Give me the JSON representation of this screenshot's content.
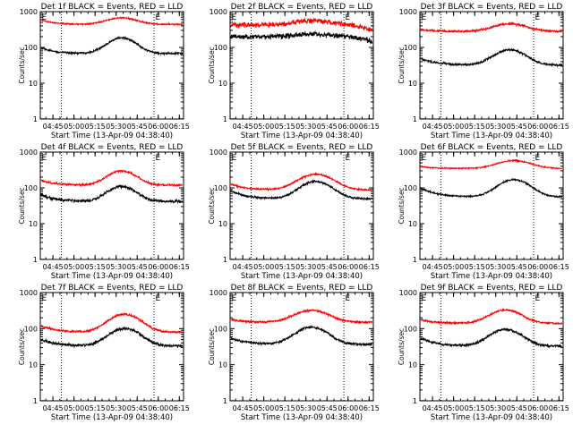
{
  "figure": {
    "background": "#ffffff",
    "colors": {
      "events": "#000000",
      "lld": "#ff0000",
      "axis": "#000000"
    }
  },
  "chart_data": [
    {
      "type": "line",
      "title": "Det 1f BLACK = Events, RED = LLD",
      "xlabel": "Start Time (13-Apr-09 04:38:40)",
      "ylabel": "Counts/sec",
      "x_ticks": [
        "04:45",
        "05:00",
        "05:15",
        "05:30",
        "05:45",
        "06:00",
        "06:15"
      ],
      "xlim_minutes": [
        -3,
        99
      ],
      "x_tick_minutes": [
        6,
        21,
        36,
        51,
        66,
        81,
        96
      ],
      "y_scale": "log",
      "ylim": [
        1,
        1000
      ],
      "y_ticks": [
        "1",
        "10",
        "100",
        "1000"
      ],
      "marker_lines_minutes": [
        12,
        78
      ],
      "marker_label": "E",
      "series": [
        {
          "color": "#000000",
          "base": 68,
          "peak": 185,
          "peak_minute": 55,
          "width_minutes": 9,
          "start": 100,
          "decay_minutes": 8,
          "noise": 0.05
        },
        {
          "color": "#ff0000",
          "base": 440,
          "peak": 670,
          "peak_minute": 55,
          "width_minutes": 10,
          "start": 600,
          "decay_minutes": 8,
          "noise": 0.035
        }
      ]
    },
    {
      "type": "line",
      "title": "Det 2f BLACK = Events, RED = LLD",
      "xlabel": "Start Time (13-Apr-09 04:38:40)",
      "ylabel": "Counts/sec",
      "x_ticks": [
        "04:45",
        "05:00",
        "05:15",
        "05:30",
        "05:45",
        "06:00",
        "06:15"
      ],
      "xlim_minutes": [
        -3,
        99
      ],
      "x_tick_minutes": [
        6,
        21,
        36,
        51,
        66,
        81,
        96
      ],
      "y_scale": "log",
      "ylim": [
        1,
        1000
      ],
      "y_ticks": [
        "1",
        "10",
        "100",
        "1000"
      ],
      "marker_lines_minutes": [
        12,
        78
      ],
      "marker_label": "E",
      "series": [
        {
          "color": "#000000",
          "base": 200,
          "peak": 240,
          "peak_minute": 55,
          "width_minutes": 12,
          "start": 200,
          "decay_minutes": 8,
          "noise": 0.13,
          "end": 150
        },
        {
          "color": "#ff0000",
          "base": 430,
          "peak": 560,
          "peak_minute": 55,
          "width_minutes": 12,
          "start": 430,
          "decay_minutes": 8,
          "noise": 0.13,
          "end": 300
        }
      ]
    },
    {
      "type": "line",
      "title": "Det 3f BLACK = Events, RED = LLD",
      "xlabel": "Start Time (13-Apr-09 04:38:40)",
      "ylabel": "Counts/sec",
      "x_ticks": [
        "04:45",
        "05:00",
        "05:15",
        "05:30",
        "05:45",
        "06:00",
        "06:15"
      ],
      "xlim_minutes": [
        -3,
        99
      ],
      "x_tick_minutes": [
        6,
        21,
        36,
        51,
        66,
        81,
        96
      ],
      "y_scale": "log",
      "ylim": [
        1,
        1000
      ],
      "y_ticks": [
        "1",
        "10",
        "100",
        "1000"
      ],
      "marker_lines_minutes": [
        12,
        78
      ],
      "marker_label": "E",
      "series": [
        {
          "color": "#000000",
          "base": 32,
          "peak": 85,
          "peak_minute": 61,
          "width_minutes": 10,
          "start": 50,
          "decay_minutes": 10,
          "noise": 0.06
        },
        {
          "color": "#ff0000",
          "base": 280,
          "peak": 460,
          "peak_minute": 61,
          "width_minutes": 11,
          "start": 320,
          "decay_minutes": 8,
          "noise": 0.05
        }
      ]
    },
    {
      "type": "line",
      "title": "Det 4f BLACK = Events, RED = LLD",
      "xlabel": "Start Time (13-Apr-09 04:38:40)",
      "ylabel": "Counts/sec",
      "x_ticks": [
        "04:45",
        "05:00",
        "05:15",
        "05:30",
        "05:45",
        "06:00",
        "06:15"
      ],
      "xlim_minutes": [
        -3,
        99
      ],
      "x_tick_minutes": [
        6,
        21,
        36,
        51,
        66,
        81,
        96
      ],
      "y_scale": "log",
      "ylim": [
        1,
        1000
      ],
      "y_ticks": [
        "1",
        "10",
        "100",
        "1000"
      ],
      "marker_lines_minutes": [
        12,
        78
      ],
      "marker_label": "E",
      "series": [
        {
          "color": "#000000",
          "base": 42,
          "peak": 110,
          "peak_minute": 55,
          "width_minutes": 9,
          "start": 65,
          "decay_minutes": 9,
          "noise": 0.07
        },
        {
          "color": "#ff0000",
          "base": 120,
          "peak": 300,
          "peak_minute": 55,
          "width_minutes": 9,
          "start": 165,
          "decay_minutes": 9,
          "noise": 0.05
        }
      ]
    },
    {
      "type": "line",
      "title": "Det 5f BLACK = Events, RED = LLD",
      "xlabel": "Start Time (13-Apr-09 04:38:40)",
      "ylabel": "Counts/sec",
      "x_ticks": [
        "04:45",
        "05:00",
        "05:15",
        "05:30",
        "05:45",
        "06:00",
        "06:15"
      ],
      "xlim_minutes": [
        -3,
        99
      ],
      "x_tick_minutes": [
        6,
        21,
        36,
        51,
        66,
        81,
        96
      ],
      "y_scale": "log",
      "ylim": [
        1,
        1000
      ],
      "y_ticks": [
        "1",
        "10",
        "100",
        "1000"
      ],
      "marker_lines_minutes": [
        12,
        78
      ],
      "marker_label": "E",
      "series": [
        {
          "color": "#000000",
          "base": 50,
          "peak": 150,
          "peak_minute": 58,
          "width_minutes": 10,
          "start": 85,
          "decay_minutes": 9,
          "noise": 0.05
        },
        {
          "color": "#ff0000",
          "base": 88,
          "peak": 240,
          "peak_minute": 58,
          "width_minutes": 11,
          "start": 130,
          "decay_minutes": 9,
          "noise": 0.04
        }
      ]
    },
    {
      "type": "line",
      "title": "Det 6f BLACK = Events, RED = LLD",
      "xlabel": "Start Time (13-Apr-09 04:38:40)",
      "ylabel": "Counts/sec",
      "x_ticks": [
        "04:45",
        "05:00",
        "05:15",
        "05:30",
        "05:45",
        "06:00",
        "06:15"
      ],
      "xlim_minutes": [
        -3,
        99
      ],
      "x_tick_minutes": [
        6,
        21,
        36,
        51,
        66,
        81,
        96
      ],
      "y_scale": "log",
      "ylim": [
        1,
        1000
      ],
      "y_ticks": [
        "1",
        "10",
        "100",
        "1000"
      ],
      "marker_lines_minutes": [
        12,
        78
      ],
      "marker_label": "E",
      "series": [
        {
          "color": "#000000",
          "base": 56,
          "peak": 170,
          "peak_minute": 64,
          "width_minutes": 10,
          "start": 100,
          "decay_minutes": 10,
          "noise": 0.04
        },
        {
          "color": "#ff0000",
          "base": 350,
          "peak": 580,
          "peak_minute": 64,
          "width_minutes": 11,
          "start": 400,
          "decay_minutes": 8,
          "noise": 0.03
        }
      ]
    },
    {
      "type": "line",
      "title": "Det 7f BLACK = Events, RED = LLD",
      "xlabel": "Start Time (13-Apr-09 04:38:40)",
      "ylabel": "Counts/sec",
      "x_ticks": [
        "04:45",
        "05:00",
        "05:15",
        "05:30",
        "05:45",
        "06:00",
        "06:15"
      ],
      "xlim_minutes": [
        -3,
        99
      ],
      "x_tick_minutes": [
        6,
        21,
        36,
        51,
        66,
        81,
        96
      ],
      "y_scale": "log",
      "ylim": [
        1,
        1000
      ],
      "y_ticks": [
        "1",
        "10",
        "100",
        "1000"
      ],
      "marker_lines_minutes": [
        12,
        78
      ],
      "marker_label": "E",
      "series": [
        {
          "color": "#000000",
          "base": 33,
          "peak": 100,
          "peak_minute": 57,
          "width_minutes": 10,
          "start": 50,
          "decay_minutes": 10,
          "noise": 0.07
        },
        {
          "color": "#ff0000",
          "base": 80,
          "peak": 250,
          "peak_minute": 57,
          "width_minutes": 10,
          "start": 120,
          "decay_minutes": 10,
          "noise": 0.05
        }
      ]
    },
    {
      "type": "line",
      "title": "Det 8f BLACK = Events, RED = LLD",
      "xlabel": "Start Time (13-Apr-09 04:38:40)",
      "ylabel": "Counts/sec",
      "x_ticks": [
        "04:45",
        "05:00",
        "05:15",
        "05:30",
        "05:45",
        "06:00",
        "06:15"
      ],
      "xlim_minutes": [
        -3,
        99
      ],
      "x_tick_minutes": [
        6,
        21,
        36,
        51,
        66,
        81,
        96
      ],
      "y_scale": "log",
      "ylim": [
        1,
        1000
      ],
      "y_ticks": [
        "1",
        "10",
        "100",
        "1000"
      ],
      "marker_lines_minutes": [
        12,
        78
      ],
      "marker_label": "E",
      "series": [
        {
          "color": "#000000",
          "base": 37,
          "peak": 110,
          "peak_minute": 55,
          "width_minutes": 10,
          "start": 55,
          "decay_minutes": 10,
          "noise": 0.06
        },
        {
          "color": "#ff0000",
          "base": 150,
          "peak": 320,
          "peak_minute": 55,
          "width_minutes": 11,
          "start": 180,
          "decay_minutes": 9,
          "noise": 0.045
        }
      ]
    },
    {
      "type": "line",
      "title": "Det 9f BLACK = Events, RED = LLD",
      "xlabel": "Start Time (13-Apr-09 04:38:40)",
      "ylabel": "Counts/sec",
      "x_ticks": [
        "04:45",
        "05:00",
        "05:15",
        "05:30",
        "05:45",
        "06:00",
        "06:15"
      ],
      "xlim_minutes": [
        -3,
        99
      ],
      "x_tick_minutes": [
        6,
        21,
        36,
        51,
        66,
        81,
        96
      ],
      "y_scale": "log",
      "ylim": [
        1,
        1000
      ],
      "y_ticks": [
        "1",
        "10",
        "100",
        "1000"
      ],
      "marker_lines_minutes": [
        12,
        78
      ],
      "marker_label": "E",
      "series": [
        {
          "color": "#000000",
          "base": 33,
          "peak": 95,
          "peak_minute": 58,
          "width_minutes": 10,
          "start": 55,
          "decay_minutes": 10,
          "noise": 0.06
        },
        {
          "color": "#ff0000",
          "base": 140,
          "peak": 330,
          "peak_minute": 58,
          "width_minutes": 10,
          "start": 180,
          "decay_minutes": 9,
          "noise": 0.045
        }
      ]
    }
  ]
}
